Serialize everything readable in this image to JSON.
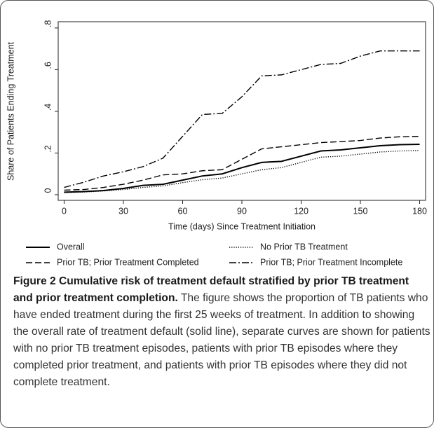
{
  "chart_data": {
    "type": "line",
    "xlabel": "Time (days) Since Treatment Initiation",
    "ylabel": "Share of Patients Ending Treatment",
    "x": [
      0,
      10,
      20,
      30,
      40,
      50,
      60,
      70,
      80,
      90,
      100,
      110,
      120,
      130,
      140,
      150,
      160,
      170,
      180
    ],
    "xlim": [
      -3,
      183
    ],
    "xticks": [
      0,
      30,
      60,
      90,
      120,
      150,
      180
    ],
    "ylim": [
      -0.027,
      0.83
    ],
    "yticks": [
      0,
      {
        "value": 0.2,
        "label": ".2"
      },
      {
        "value": 0.4,
        "label": ".4"
      },
      {
        "value": 0.6,
        "label": ".6"
      },
      {
        "value": 0.8,
        "label": ".8"
      }
    ],
    "series": [
      {
        "name": "Overall",
        "color": "#000000",
        "linestyle": "solid",
        "values": [
          0.012,
          0.015,
          0.02,
          0.03,
          0.045,
          0.05,
          0.07,
          0.09,
          0.1,
          0.13,
          0.155,
          0.16,
          0.185,
          0.21,
          0.215,
          0.225,
          0.235,
          0.24,
          0.242
        ]
      },
      {
        "name": "No Prior TB Treatment",
        "color": "#000000",
        "linestyle": "dotted",
        "values": [
          0.01,
          0.013,
          0.018,
          0.025,
          0.035,
          0.042,
          0.058,
          0.072,
          0.08,
          0.1,
          0.12,
          0.13,
          0.155,
          0.18,
          0.185,
          0.195,
          0.205,
          0.21,
          0.212
        ]
      },
      {
        "name": "Prior TB; Prior Treatment Completed",
        "color": "#000000",
        "linestyle": "dashed",
        "values": [
          0.022,
          0.025,
          0.035,
          0.05,
          0.07,
          0.095,
          0.1,
          0.115,
          0.12,
          0.17,
          0.22,
          0.23,
          0.24,
          0.25,
          0.255,
          0.26,
          0.272,
          0.278,
          0.28
        ]
      },
      {
        "name": "Prior TB; Prior Treatment Incomplete",
        "color": "#000000",
        "linestyle": "dashdot",
        "values": [
          0.035,
          0.06,
          0.09,
          0.11,
          0.135,
          0.175,
          0.28,
          0.385,
          0.39,
          0.47,
          0.57,
          0.575,
          0.6,
          0.625,
          0.63,
          0.665,
          0.69,
          0.69,
          0.69
        ]
      }
    ]
  },
  "caption": {
    "label": "Figure 2",
    "title": "Cumulative risk of treatment default stratified by prior TB treatment and prior treatment completion.",
    "text": "The figure shows the proportion of TB patients who have ended treatment during the first 25 weeks of treatment. In addition to showing the overall rate of treatment default (solid line), separate curves are shown for patients with no prior TB treatment episodes, patients with prior TB episodes where they completed prior treatment, and patients with prior TB episodes where they did not complete treatment."
  }
}
